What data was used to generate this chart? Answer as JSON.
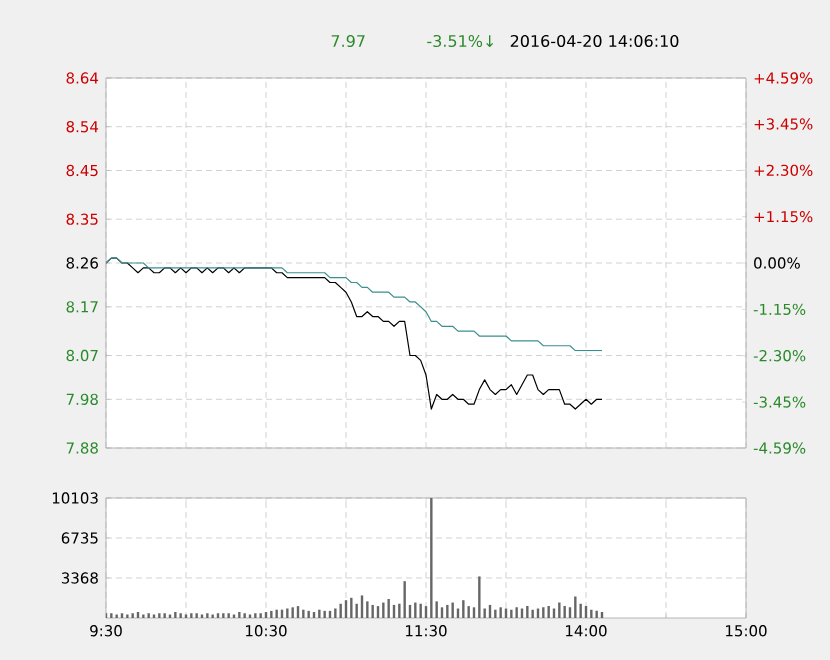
{
  "chart_data": [
    {
      "type": "line",
      "annotations": [
        "7.97",
        "-3.51%↓",
        "2016-04-20 14:06:10"
      ],
      "categories": [
        null,
        null,
        null,
        null,
        null,
        null,
        null,
        null,
        null,
        null,
        null,
        null,
        null,
        null,
        null,
        null,
        null,
        null,
        null,
        null,
        null,
        null,
        null,
        null,
        null,
        null,
        null,
        null,
        null,
        null,
        null,
        null,
        null,
        null,
        null,
        null,
        null,
        null,
        null,
        null,
        null,
        null,
        null,
        null,
        null,
        null,
        null,
        null,
        null,
        null,
        null,
        null,
        null,
        null,
        null,
        null,
        null,
        null,
        null,
        null,
        null,
        null,
        null,
        null,
        null,
        null,
        null,
        null,
        null,
        null,
        null,
        null,
        null,
        null,
        null,
        null,
        null,
        null,
        null,
        null,
        null,
        null,
        null,
        null,
        null,
        null,
        null,
        null,
        null,
        null,
        null,
        null,
        null,
        null,
        null,
        null,
        null,
        null,
        null,
        null,
        null,
        null,
        null,
        null,
        null,
        null,
        null,
        null,
        null,
        null,
        null,
        null,
        null,
        null,
        null,
        null,
        null,
        null,
        null,
        null,
        null
      ],
      "ylim": [
        7.88,
        8.64
      ],
      "yticks": [
        8.64,
        8.54,
        8.45,
        8.35,
        8.26,
        8.17,
        8.07,
        7.98,
        7.88
      ],
      "y2lim": [
        -4.59,
        4.59
      ],
      "y2ticks": [
        {
          "value": 4.59,
          "label": "+4.59%"
        },
        {
          "value": 3.45,
          "label": "+3.45%"
        },
        {
          "value": 2.3,
          "label": "+2.30%"
        },
        {
          "value": 1.15,
          "label": "+1.15%"
        },
        {
          "value": 0,
          "label": "0.00%"
        },
        {
          "value": -1.15,
          "label": "-1.15%"
        },
        {
          "value": -2.3,
          "label": "-2.30%"
        },
        {
          "value": -3.45,
          "label": "-3.45%"
        },
        {
          "value": -4.59,
          "label": "-4.59%"
        }
      ],
      "tick_labels": "y",
      "grid": true,
      "series": [
        {
          "color": "#000000",
          "values": [
            8.26,
            8.27,
            8.27,
            8.26,
            8.26,
            8.25,
            8.24,
            8.25,
            8.25,
            8.24,
            8.24,
            8.25,
            8.25,
            8.24,
            8.25,
            8.24,
            8.25,
            8.25,
            8.24,
            8.25,
            8.24,
            8.25,
            8.25,
            8.24,
            8.25,
            8.24,
            8.25,
            8.25,
            8.25,
            8.25,
            8.25,
            8.25,
            8.24,
            8.24,
            8.23,
            8.23,
            8.23,
            8.23,
            8.23,
            8.23,
            8.23,
            8.23,
            8.22,
            8.22,
            8.21,
            8.2,
            8.18,
            8.15,
            8.15,
            8.16,
            8.15,
            8.15,
            8.14,
            8.14,
            8.13,
            8.14,
            8.14,
            8.07,
            8.07,
            8.06,
            8.03,
            7.96,
            7.99,
            7.98,
            7.98,
            7.99,
            7.98,
            7.98,
            7.97,
            7.97,
            8.0,
            8.02,
            8.0,
            7.99,
            8.0,
            8.0,
            8.01,
            7.99,
            8.01,
            8.03,
            8.03,
            8.0,
            7.99,
            8.0,
            8.0,
            8.0,
            7.97,
            7.97,
            7.96,
            7.97,
            7.98,
            7.97,
            7.98,
            7.98,
            null,
            null,
            null,
            null,
            null,
            null,
            null,
            null,
            null,
            null,
            null,
            null,
            null,
            null,
            null,
            null,
            null,
            null,
            null,
            null,
            null,
            null,
            null,
            null,
            null,
            null,
            null
          ]
        },
        {
          "color": "#3a8f8f",
          "values": [
            8.26,
            8.27,
            8.27,
            8.26,
            8.26,
            8.26,
            8.26,
            8.26,
            8.25,
            8.25,
            8.25,
            8.25,
            8.25,
            8.25,
            8.25,
            8.25,
            8.25,
            8.25,
            8.25,
            8.25,
            8.25,
            8.25,
            8.25,
            8.25,
            8.25,
            8.25,
            8.25,
            8.25,
            8.25,
            8.25,
            8.25,
            8.25,
            8.25,
            8.25,
            8.24,
            8.24,
            8.24,
            8.24,
            8.24,
            8.24,
            8.24,
            8.24,
            8.23,
            8.23,
            8.23,
            8.23,
            8.22,
            8.22,
            8.21,
            8.21,
            8.2,
            8.2,
            8.2,
            8.2,
            8.19,
            8.19,
            8.19,
            8.18,
            8.18,
            8.17,
            8.16,
            8.14,
            8.14,
            8.13,
            8.13,
            8.13,
            8.12,
            8.12,
            8.12,
            8.12,
            8.11,
            8.11,
            8.11,
            8.11,
            8.11,
            8.11,
            8.1,
            8.1,
            8.1,
            8.1,
            8.1,
            8.1,
            8.09,
            8.09,
            8.09,
            8.09,
            8.09,
            8.09,
            8.08,
            8.08,
            8.08,
            8.08,
            8.08,
            8.08,
            null,
            null,
            null,
            null,
            null,
            null,
            null,
            null,
            null,
            null,
            null,
            null,
            null,
            null,
            null,
            null,
            null,
            null,
            null,
            null,
            null,
            null,
            null,
            null,
            null,
            null,
            null
          ]
        }
      ]
    },
    {
      "type": "bar",
      "categories": [
        "9:30",
        null,
        null,
        null,
        null,
        null,
        null,
        null,
        null,
        null,
        null,
        null,
        null,
        null,
        null,
        null,
        null,
        null,
        null,
        null,
        null,
        null,
        null,
        null,
        null,
        null,
        null,
        null,
        null,
        null,
        "10:30",
        null,
        null,
        null,
        null,
        null,
        null,
        null,
        null,
        null,
        null,
        null,
        null,
        null,
        null,
        null,
        null,
        null,
        null,
        null,
        null,
        null,
        null,
        null,
        null,
        null,
        null,
        null,
        null,
        null,
        "11:30",
        null,
        null,
        null,
        null,
        null,
        null,
        null,
        null,
        null,
        null,
        null,
        null,
        null,
        null,
        null,
        null,
        null,
        null,
        null,
        null,
        null,
        null,
        null,
        null,
        null,
        null,
        null,
        null,
        null,
        "14:00",
        null,
        null,
        null,
        null,
        null,
        null,
        null,
        null,
        null,
        null,
        null,
        null,
        null,
        null,
        null,
        null,
        null,
        null,
        null,
        null,
        null,
        null,
        null,
        null,
        null,
        null,
        null,
        null,
        null,
        "15:00"
      ],
      "ylim": [
        0,
        10103
      ],
      "yticks": [
        3368,
        6735,
        10103
      ],
      "grid": true,
      "series": [
        {
          "color": "#666666",
          "values": [
            400,
            400,
            300,
            400,
            300,
            400,
            500,
            300,
            400,
            300,
            400,
            400,
            300,
            500,
            400,
            300,
            400,
            400,
            300,
            400,
            300,
            400,
            400,
            400,
            300,
            500,
            400,
            300,
            400,
            400,
            500,
            600,
            700,
            700,
            800,
            900,
            1000,
            700,
            600,
            500,
            700,
            600,
            600,
            800,
            1200,
            1500,
            1700,
            1200,
            1900,
            1400,
            1100,
            1000,
            1300,
            1600,
            1100,
            1200,
            3100,
            1100,
            1300,
            1200,
            1000,
            10100,
            1400,
            900,
            1100,
            1300,
            800,
            1500,
            1000,
            900,
            3500,
            800,
            1100,
            700,
            900,
            800,
            700,
            900,
            800,
            1000,
            700,
            800,
            900,
            1000,
            800,
            1300,
            1000,
            900,
            1800,
            1200,
            1000,
            700,
            600,
            500,
            null,
            null,
            null,
            null,
            null,
            null,
            null,
            null,
            null,
            null,
            null,
            null,
            null,
            null,
            null,
            null,
            null,
            null,
            null,
            null,
            null,
            null,
            null,
            null,
            null,
            null,
            null
          ]
        }
      ]
    }
  ]
}
